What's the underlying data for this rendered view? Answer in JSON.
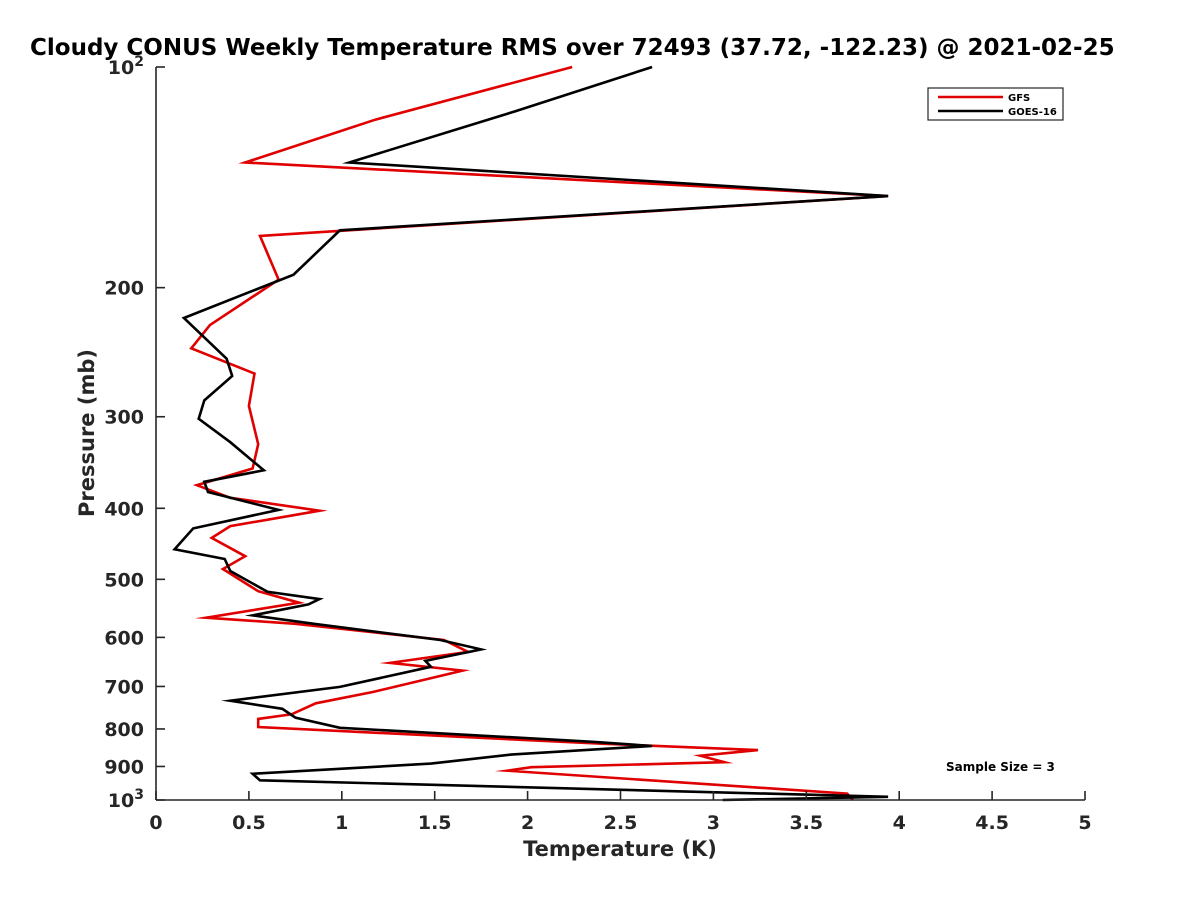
{
  "chart_data": {
    "type": "line",
    "title": "Cloudy CONUS Weekly Temperature RMS over 72493 (37.72, -122.23) @ 2021-02-25",
    "xlabel": "Temperature (K)",
    "ylabel": "Pressure (mb)",
    "xlim": [
      0,
      5
    ],
    "ylim": [
      100,
      1000
    ],
    "y_scale": "log",
    "y_reversed": true,
    "x_ticks": [
      "0",
      "0.5",
      "1",
      "1.5",
      "2",
      "2.5",
      "3",
      "3.5",
      "4",
      "4.5",
      "5"
    ],
    "y_ticks": [
      {
        "value": 100,
        "base": "10",
        "exp": "2"
      },
      {
        "value": 200,
        "label": "200"
      },
      {
        "value": 300,
        "label": "300"
      },
      {
        "value": 400,
        "label": "400"
      },
      {
        "value": 500,
        "label": "500"
      },
      {
        "value": 600,
        "label": "600"
      },
      {
        "value": 700,
        "label": "700"
      },
      {
        "value": 800,
        "label": "800"
      },
      {
        "value": 900,
        "label": "900"
      },
      {
        "value": 1000,
        "base": "10",
        "exp": "3"
      }
    ],
    "legend_position": "top-right",
    "annotation": "Sample Size = 3",
    "series": [
      {
        "name": "GFS",
        "color": "#e00000",
        "points": [
          [
            2.24,
            100
          ],
          [
            1.18,
            118
          ],
          [
            0.48,
            135
          ],
          [
            3.94,
            150
          ],
          [
            0.56,
            170
          ],
          [
            0.66,
            195
          ],
          [
            0.29,
            225
          ],
          [
            0.19,
            242
          ],
          [
            0.53,
            262
          ],
          [
            0.5,
            290
          ],
          [
            0.55,
            327
          ],
          [
            0.52,
            353
          ],
          [
            0.22,
            372
          ],
          [
            0.4,
            387
          ],
          [
            0.88,
            403
          ],
          [
            0.4,
            423
          ],
          [
            0.3,
            439
          ],
          [
            0.48,
            465
          ],
          [
            0.36,
            484
          ],
          [
            0.55,
            519
          ],
          [
            0.77,
            538
          ],
          [
            0.27,
            564
          ],
          [
            0.75,
            575
          ],
          [
            1.55,
            605
          ],
          [
            1.68,
            628
          ],
          [
            1.26,
            650
          ],
          [
            1.65,
            666
          ],
          [
            1.17,
            712
          ],
          [
            0.86,
            738
          ],
          [
            0.73,
            764
          ],
          [
            0.55,
            775
          ],
          [
            0.55,
            795
          ],
          [
            2.4,
            838
          ],
          [
            3.24,
            855
          ],
          [
            2.93,
            870
          ],
          [
            3.06,
            888
          ],
          [
            2.02,
            902
          ],
          [
            1.89,
            912
          ],
          [
            3.72,
            980
          ],
          [
            3.75,
            1000
          ]
        ]
      },
      {
        "name": "GOES-16",
        "color": "#000000",
        "points": [
          [
            2.67,
            100
          ],
          [
            1.93,
            115
          ],
          [
            1.04,
            135
          ],
          [
            3.94,
            150
          ],
          [
            0.99,
            167
          ],
          [
            0.74,
            192
          ],
          [
            0.15,
            220
          ],
          [
            0.38,
            250
          ],
          [
            0.41,
            264
          ],
          [
            0.26,
            285
          ],
          [
            0.23,
            302
          ],
          [
            0.4,
            325
          ],
          [
            0.58,
            355
          ],
          [
            0.26,
            368
          ],
          [
            0.28,
            380
          ],
          [
            0.66,
            402
          ],
          [
            0.2,
            426
          ],
          [
            0.1,
            455
          ],
          [
            0.37,
            469
          ],
          [
            0.4,
            487
          ],
          [
            0.6,
            520
          ],
          [
            0.88,
            532
          ],
          [
            0.82,
            541
          ],
          [
            0.52,
            560
          ],
          [
            0.85,
            575
          ],
          [
            1.53,
            605
          ],
          [
            1.75,
            623
          ],
          [
            1.45,
            646
          ],
          [
            1.48,
            658
          ],
          [
            0.99,
            701
          ],
          [
            0.4,
            732
          ],
          [
            0.68,
            751
          ],
          [
            0.75,
            772
          ],
          [
            0.99,
            797
          ],
          [
            2.35,
            833
          ],
          [
            2.67,
            844
          ],
          [
            1.91,
            867
          ],
          [
            1.48,
            892
          ],
          [
            0.52,
            921
          ],
          [
            0.56,
            940
          ],
          [
            3.94,
            990
          ],
          [
            3.05,
            1000
          ]
        ]
      }
    ]
  }
}
